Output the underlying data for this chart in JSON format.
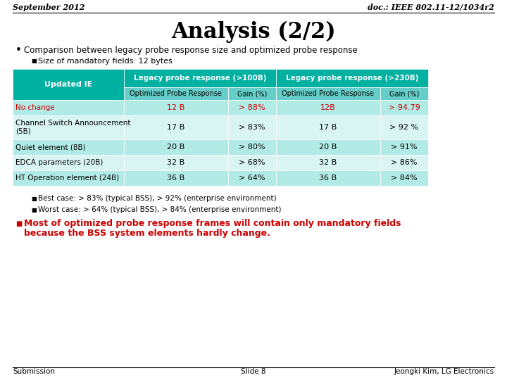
{
  "header_left": "September 2012",
  "header_right": "doc.: IEEE 802.11-12/1034r2",
  "title": "Analysis (2/2)",
  "bullet1": "Comparison between legacy probe response size and optimized probe response",
  "sub_bullet1": "Size of mandatory fields: 12 bytes",
  "table_header_col1": "Updated IE",
  "table_header_col2": "Legacy probe response (>100B)",
  "table_header_col3": "Legacy probe response (>230B)",
  "table_subheader_opt": "Optimized Probe Response",
  "table_subheader_gain": "Gain (%)",
  "table_rows": [
    [
      "No change",
      "12 B",
      "> 88%",
      "12B",
      "> 94.79"
    ],
    [
      "Channel Switch Announcement\n(5B)",
      "17 B",
      "> 83%",
      "17 B",
      "> 92 %"
    ],
    [
      "Quiet element (8B)",
      "20 B",
      "> 80%",
      "20 B",
      "> 91%"
    ],
    [
      "EDCA parameters (20B)",
      "32 B",
      "> 68%",
      "32 B",
      "> 86%"
    ],
    [
      "HT Operation element (24B)",
      "36 B",
      "> 64%",
      "36 B",
      "> 84%"
    ]
  ],
  "row0_color": "#cc0000",
  "header_bg": "#00b0a0",
  "subheader_bg": "#66cec8",
  "row0_bg": "#b2ebe6",
  "row1_bg": "#d8f5f3",
  "row2_bg": "#b2ebe6",
  "row3_bg": "#d8f5f3",
  "row4_bg": "#b2ebe6",
  "bullet2a": "Best case: > 83% (typical BSS), > 92% (enterprise environment)",
  "bullet2b": "Worst case: > 64% (typical BSS), > 84% (enterprise environment)",
  "bullet3_line1": "Most of optimized probe response frames will contain only mandatory fields",
  "bullet3_line2": "because the BSS system elements hardly change.",
  "footer_left": "Submission",
  "footer_center": "Slide 8",
  "footer_right": "Jeongki Kim, LG Electronics",
  "fig_width": 7.2,
  "fig_height": 5.4,
  "dpi": 100
}
